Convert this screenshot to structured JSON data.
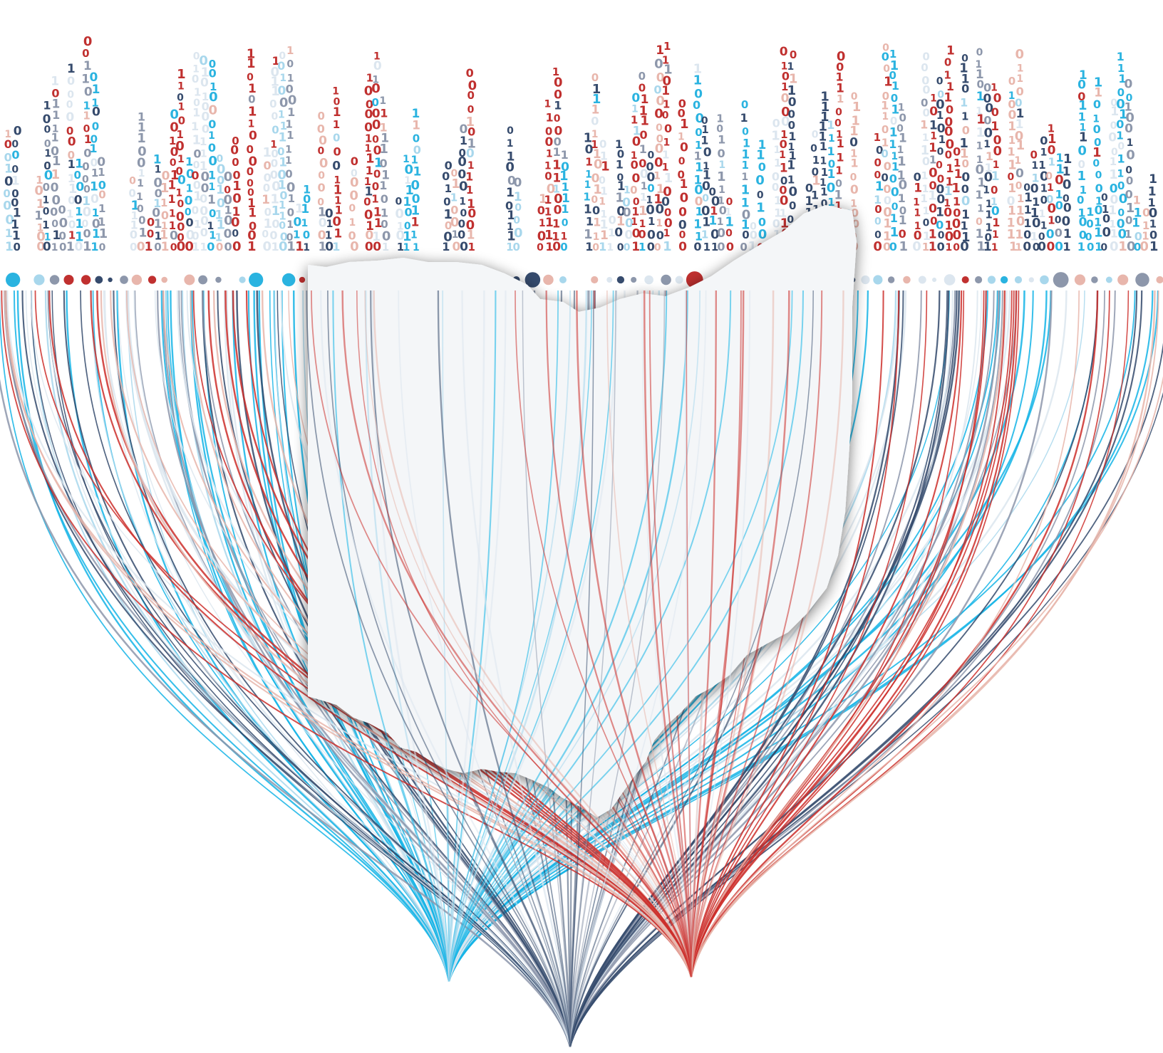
{
  "binary_glyphs": [
    "0",
    "1"
  ],
  "colors": {
    "background": "#ffffff",
    "red": "#c0302f",
    "light_red": "#e8b6ac",
    "navy": "#364b6d",
    "slate": "#8d97ab",
    "sky": "#2ab3e0",
    "light_sky": "#a8d7ec",
    "pale": "#dce6ef",
    "state_fill": "#f4f6f8",
    "state_shadow": "#8a909a"
  },
  "shape": "ohio-state-silhouette",
  "fans": [
    {
      "name": "sky",
      "color": "#14b4e6"
    },
    {
      "name": "navy",
      "color": "#344a6c"
    },
    {
      "name": "red",
      "color": "#cc2f2c"
    }
  ]
}
